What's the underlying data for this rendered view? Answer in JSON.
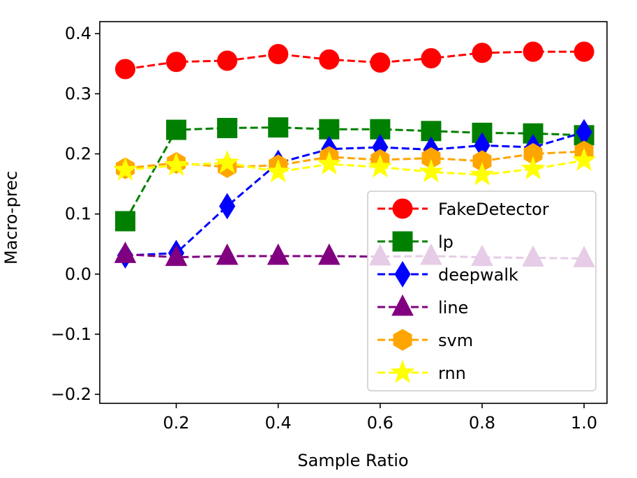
{
  "chart_data": {
    "type": "line",
    "xlabel": "Sample Ratio",
    "ylabel": "Macro-prec",
    "xlim": [
      0.05,
      1.045
    ],
    "ylim": [
      -0.215,
      0.42
    ],
    "xticks": [
      0.2,
      0.4,
      0.6,
      0.8,
      1.0
    ],
    "xtick_labels": [
      "0.2",
      "0.4",
      "0.6",
      "0.8",
      "1.0"
    ],
    "yticks": [
      -0.2,
      -0.1,
      0.0,
      0.1,
      0.2,
      0.3,
      0.4
    ],
    "ytick_labels": [
      "−0.2",
      "−0.1",
      "0.0",
      "0.1",
      "0.2",
      "0.3",
      "0.4"
    ],
    "grid": false,
    "legend_position": "lower-right",
    "x": [
      0.1,
      0.2,
      0.3,
      0.4,
      0.5,
      0.6,
      0.7,
      0.8,
      0.9,
      1.0
    ],
    "series": [
      {
        "name": "FakeDetector",
        "color": "#ff0000",
        "marker": "circle",
        "values": [
          0.341,
          0.353,
          0.355,
          0.366,
          0.357,
          0.352,
          0.359,
          0.368,
          0.37,
          0.37
        ]
      },
      {
        "name": "lp",
        "color": "#008000",
        "marker": "square",
        "values": [
          0.088,
          0.24,
          0.243,
          0.244,
          0.241,
          0.241,
          0.238,
          0.235,
          0.234,
          0.231
        ]
      },
      {
        "name": "deepwalk",
        "color": "#0000ff",
        "marker": "thin-diamond",
        "values": [
          0.031,
          0.035,
          0.113,
          0.185,
          0.208,
          0.211,
          0.207,
          0.214,
          0.211,
          0.236
        ]
      },
      {
        "name": "line",
        "color": "#800080",
        "marker": "triangle",
        "values": [
          0.033,
          0.028,
          0.03,
          0.03,
          0.03,
          0.029,
          0.03,
          0.028,
          0.027,
          0.026
        ]
      },
      {
        "name": "svm",
        "color": "#ffa500",
        "marker": "hexagon",
        "values": [
          0.176,
          0.185,
          0.178,
          0.181,
          0.195,
          0.19,
          0.193,
          0.188,
          0.2,
          0.204
        ]
      },
      {
        "name": "rnn",
        "color": "#ffff00",
        "marker": "star",
        "values": [
          0.173,
          0.181,
          0.185,
          0.17,
          0.183,
          0.178,
          0.17,
          0.165,
          0.175,
          0.189
        ]
      }
    ]
  }
}
